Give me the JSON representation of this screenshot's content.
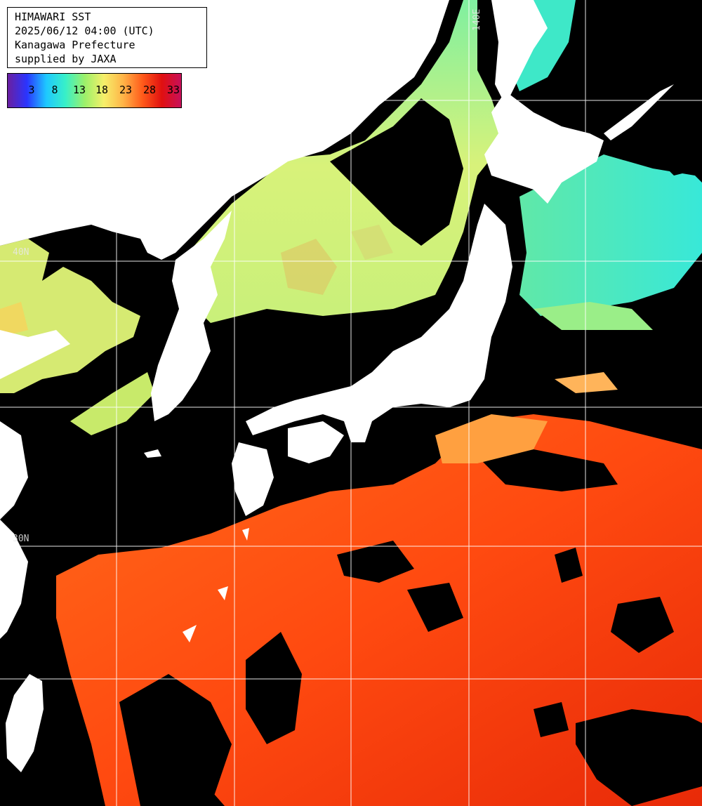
{
  "header": {
    "line1": "HIMAWARI SST",
    "line2": "2025/06/12 04:00 (UTC)",
    "line3": "Kanagawa Prefecture",
    "line4": "supplied by JAXA"
  },
  "colorbar": {
    "ticks": [
      "3",
      "8",
      "13",
      "18",
      "23",
      "28",
      "33"
    ],
    "colors": [
      "#6a1fa0",
      "#2a35ff",
      "#1ec8ff",
      "#38f0c8",
      "#9cf06a",
      "#f6ef6a",
      "#ffb347",
      "#ff5a1a",
      "#e01010",
      "#c8105a"
    ]
  },
  "grid": {
    "lon_label": "140E",
    "lat_label_1": "40N",
    "lat_label_2": "30N"
  },
  "colors": {
    "land": "#ffffff",
    "cloud": "#000000",
    "grid": "#ffffff"
  }
}
